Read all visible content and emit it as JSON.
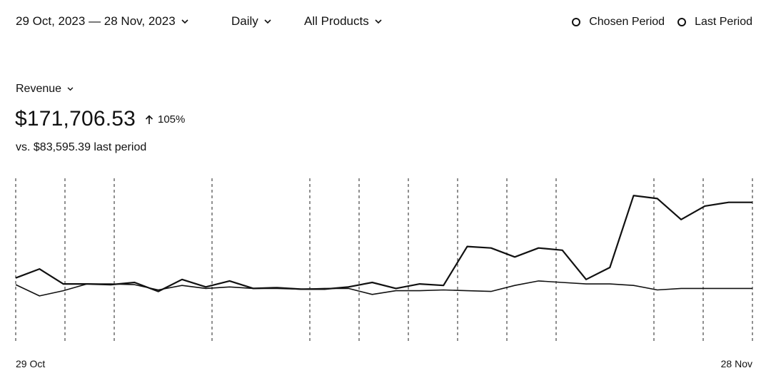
{
  "toolbar": {
    "date_range": "29 Oct, 2023 — 28 Nov, 2023",
    "granularity": "Daily",
    "product_filter": "All Products"
  },
  "legend": {
    "chosen_label": "Chosen Period",
    "last_label": "Last Period"
  },
  "metric": {
    "name": "Revenue",
    "value": "$171,706.53",
    "change": "105%",
    "comparison": "vs. $83,595.39 last period"
  },
  "chart_data": {
    "type": "line",
    "x_start_label": "29 Oct",
    "x_end_label": "28 Nov",
    "grid": "dashed vertical",
    "series": [
      {
        "name": "Chosen Period",
        "values": [
          38.5,
          31,
          34.5,
          39,
          39,
          38.5,
          35,
          38,
          36,
          37,
          36,
          36,
          35.5,
          36,
          36,
          32,
          34.5,
          34.5,
          35,
          34.5,
          34,
          38,
          41,
          40,
          39,
          39,
          38,
          35,
          36,
          36,
          36,
          36
        ]
      },
      {
        "name": "Last Period",
        "values": [
          43,
          49,
          39,
          39,
          38.5,
          40,
          34,
          42,
          37,
          41,
          36,
          36.5,
          35.5,
          35.5,
          37,
          40,
          36,
          39,
          38,
          64,
          63,
          57,
          63,
          61.5,
          42,
          50,
          98,
          96,
          82,
          91,
          93.5,
          93.5
        ]
      }
    ]
  }
}
